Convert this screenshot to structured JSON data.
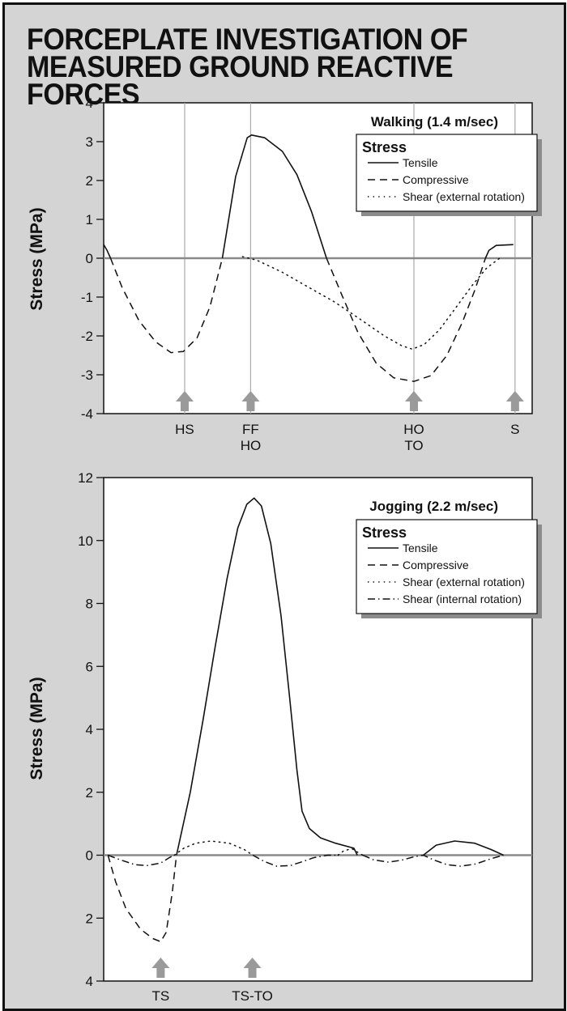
{
  "title": {
    "line1": "FORCEPLATE INVESTIGATION OF",
    "line2": "MEASURED GROUND REACTIVE FORCES"
  },
  "colors": {
    "background": "#d4d4d4",
    "axis": "#111111",
    "zero_line": "#8a8a8a",
    "event_arrow": "#9a9a9a",
    "event_line": "#a9a9a9"
  },
  "chart_data": [
    {
      "type": "line",
      "title": "Walking (1.4 m/sec)",
      "ylabel": "Stress (MPa)",
      "ylim": [
        -4,
        4
      ],
      "xlim": [
        0,
        100
      ],
      "y_ticks": [
        {
          "value": 4,
          "label": "4"
        },
        {
          "value": 3,
          "label": "3"
        },
        {
          "value": 2,
          "label": "2"
        },
        {
          "value": 1,
          "label": "1"
        },
        {
          "value": 0,
          "label": "0"
        },
        {
          "value": -1,
          "label": "-1"
        },
        {
          "value": -2,
          "label": "-2"
        },
        {
          "value": -3,
          "label": "-3"
        },
        {
          "value": -4,
          "label": "-4"
        }
      ],
      "legend": {
        "title": "Stress",
        "position": "top-right",
        "entries": [
          {
            "label": "Tensile",
            "style": "solid"
          },
          {
            "label": "Compressive",
            "style": "dashed"
          },
          {
            "label": "Shear (external rotation)",
            "style": "dotted"
          }
        ]
      },
      "events": [
        {
          "x": 18.9,
          "label": "HS",
          "line": true
        },
        {
          "x": 34.3,
          "label": "FF\nHO",
          "line": true
        },
        {
          "x": 72.4,
          "label": "HO\nTO",
          "line": true
        },
        {
          "x": 96.0,
          "label": "S",
          "line": true
        }
      ],
      "series": [
        {
          "name": "Tensile",
          "style": "solid",
          "segments": [
            [
              [
                0,
                0.35
              ],
              [
                0.8,
                0.2
              ],
              [
                1.6,
                0
              ]
            ],
            [
              [
                27.7,
                0
              ],
              [
                30.8,
                2.1
              ],
              [
                33.5,
                3.1
              ],
              [
                34.5,
                3.17
              ],
              [
                37.6,
                3.1
              ],
              [
                41.7,
                2.75
              ],
              [
                45.1,
                2.15
              ],
              [
                48.5,
                1.2
              ],
              [
                52.0,
                0
              ]
            ],
            [
              [
                89.1,
                0
              ],
              [
                89.9,
                0.2
              ],
              [
                91.6,
                0.33
              ],
              [
                95.6,
                0.35
              ]
            ]
          ]
        },
        {
          "name": "Compressive",
          "style": "dashed",
          "segments": [
            [
              [
                1.6,
                0
              ],
              [
                4.3,
                -0.75
              ],
              [
                8.2,
                -1.6
              ],
              [
                12.1,
                -2.15
              ],
              [
                15.7,
                -2.43
              ],
              [
                18.6,
                -2.4
              ],
              [
                21.8,
                -2.05
              ],
              [
                24.8,
                -1.25
              ],
              [
                27.7,
                0
              ]
            ],
            [
              [
                52.0,
                0
              ],
              [
                55.6,
                -0.95
              ],
              [
                59.3,
                -1.9
              ],
              [
                63.6,
                -2.7
              ],
              [
                67.7,
                -3.08
              ],
              [
                72.4,
                -3.17
              ],
              [
                76.4,
                -3.02
              ],
              [
                80.1,
                -2.5
              ],
              [
                83.7,
                -1.65
              ],
              [
                86.7,
                -0.8
              ],
              [
                89.1,
                0
              ]
            ]
          ]
        },
        {
          "name": "Shear (external rotation)",
          "style": "dotted",
          "segments": [
            [
              [
                32.4,
                0.04
              ],
              [
                35.7,
                -0.05
              ],
              [
                41.5,
                -0.35
              ],
              [
                47.4,
                -0.72
              ],
              [
                53.8,
                -1.12
              ],
              [
                59.6,
                -1.55
              ],
              [
                65.5,
                -2.0
              ],
              [
                69.5,
                -2.25
              ],
              [
                72.0,
                -2.34
              ],
              [
                74.8,
                -2.22
              ],
              [
                78.3,
                -1.85
              ],
              [
                82.0,
                -1.3
              ],
              [
                86.0,
                -0.7
              ],
              [
                89.4,
                -0.25
              ],
              [
                92.4,
                0
              ]
            ]
          ]
        }
      ]
    },
    {
      "type": "line",
      "title": "Jogging (2.2 m/sec)",
      "ylabel": "Stress (MPa)",
      "ylim": [
        -4,
        12
      ],
      "xlim": [
        0,
        100
      ],
      "y_ticks": [
        {
          "value": 12,
          "label": "12"
        },
        {
          "value": 10,
          "label": "10"
        },
        {
          "value": 8,
          "label": "8"
        },
        {
          "value": 6,
          "label": "6"
        },
        {
          "value": 4,
          "label": "4"
        },
        {
          "value": 2,
          "label": "2"
        },
        {
          "value": 0,
          "label": "0"
        },
        {
          "value": -2,
          "label": "2"
        },
        {
          "value": -4,
          "label": "4"
        }
      ],
      "legend": {
        "title": "Stress",
        "position": "top-right",
        "entries": [
          {
            "label": "Tensile",
            "style": "solid"
          },
          {
            "label": "Compressive",
            "style": "dashed"
          },
          {
            "label": "Shear (external rotation)",
            "style": "dotted"
          },
          {
            "label": "Shear (internal rotation)",
            "style": "dashdot"
          }
        ]
      },
      "events": [
        {
          "x": 13.3,
          "label": "TS",
          "line": false
        },
        {
          "x": 34.7,
          "label": "TS-TO",
          "line": false
        }
      ],
      "series": [
        {
          "name": "Tensile",
          "style": "solid",
          "segments": [
            [
              [
                17.0,
                0
              ],
              [
                20.2,
                2.0
              ],
              [
                23.2,
                4.3
              ],
              [
                26.0,
                6.6
              ],
              [
                28.8,
                8.8
              ],
              [
                31.3,
                10.4
              ],
              [
                33.4,
                11.15
              ],
              [
                35.1,
                11.35
              ],
              [
                36.8,
                11.1
              ],
              [
                39.0,
                9.9
              ],
              [
                41.4,
                7.6
              ],
              [
                43.4,
                5.0
              ],
              [
                45.1,
                2.7
              ],
              [
                46.3,
                1.4
              ],
              [
                48.0,
                0.85
              ],
              [
                50.6,
                0.55
              ],
              [
                54.1,
                0.38
              ],
              [
                58.4,
                0.22
              ],
              [
                59.2,
                0
              ]
            ],
            [
              [
                74.6,
                0
              ],
              [
                77.6,
                0.32
              ],
              [
                81.9,
                0.45
              ],
              [
                86.6,
                0.38
              ],
              [
                90.4,
                0.18
              ],
              [
                93.3,
                0
              ]
            ]
          ]
        },
        {
          "name": "Compressive",
          "style": "dashed",
          "segments": [
            [
              [
                1.0,
                0
              ],
              [
                2.8,
                -0.85
              ],
              [
                5.2,
                -1.7
              ],
              [
                8.6,
                -2.35
              ],
              [
                11.5,
                -2.65
              ],
              [
                13.3,
                -2.75
              ],
              [
                14.6,
                -2.45
              ],
              [
                16.0,
                -1.2
              ],
              [
                17.0,
                0
              ]
            ]
          ]
        },
        {
          "name": "Shear (external rotation)",
          "style": "dotted",
          "segments": [
            [
              [
                16.5,
                0
              ],
              [
                18.7,
                0.22
              ],
              [
                21.5,
                0.38
              ],
              [
                25.0,
                0.45
              ],
              [
                29.3,
                0.38
              ],
              [
                32.8,
                0.18
              ],
              [
                34.8,
                0
              ]
            ],
            [
              [
                54.7,
                0
              ],
              [
                56.1,
                0.15
              ],
              [
                58.0,
                0.2
              ],
              [
                59.8,
                0.05
              ],
              [
                60.5,
                0
              ]
            ]
          ]
        },
        {
          "name": "Shear (internal rotation)",
          "style": "dashdot",
          "segments": [
            [
              [
                1.0,
                0
              ],
              [
                3.9,
                -0.15
              ],
              [
                7.3,
                -0.3
              ],
              [
                10.2,
                -0.33
              ],
              [
                13.3,
                -0.25
              ],
              [
                15.3,
                -0.08
              ],
              [
                16.5,
                0
              ]
            ],
            [
              [
                34.8,
                0
              ],
              [
                37.5,
                -0.2
              ],
              [
                40.4,
                -0.35
              ],
              [
                43.6,
                -0.33
              ],
              [
                46.5,
                -0.2
              ],
              [
                49.0,
                -0.08
              ],
              [
                52.3,
                0
              ],
              [
                54.7,
                0
              ]
            ],
            [
              [
                60.5,
                0
              ],
              [
                63.0,
                -0.15
              ],
              [
                66.5,
                -0.22
              ],
              [
                69.5,
                -0.16
              ],
              [
                72.5,
                -0.05
              ],
              [
                74.6,
                0
              ],
              [
                77.0,
                -0.15
              ],
              [
                80.1,
                -0.3
              ],
              [
                83.3,
                -0.35
              ],
              [
                86.8,
                -0.28
              ],
              [
                90.2,
                -0.12
              ],
              [
                93.3,
                0
              ]
            ]
          ]
        }
      ]
    }
  ]
}
